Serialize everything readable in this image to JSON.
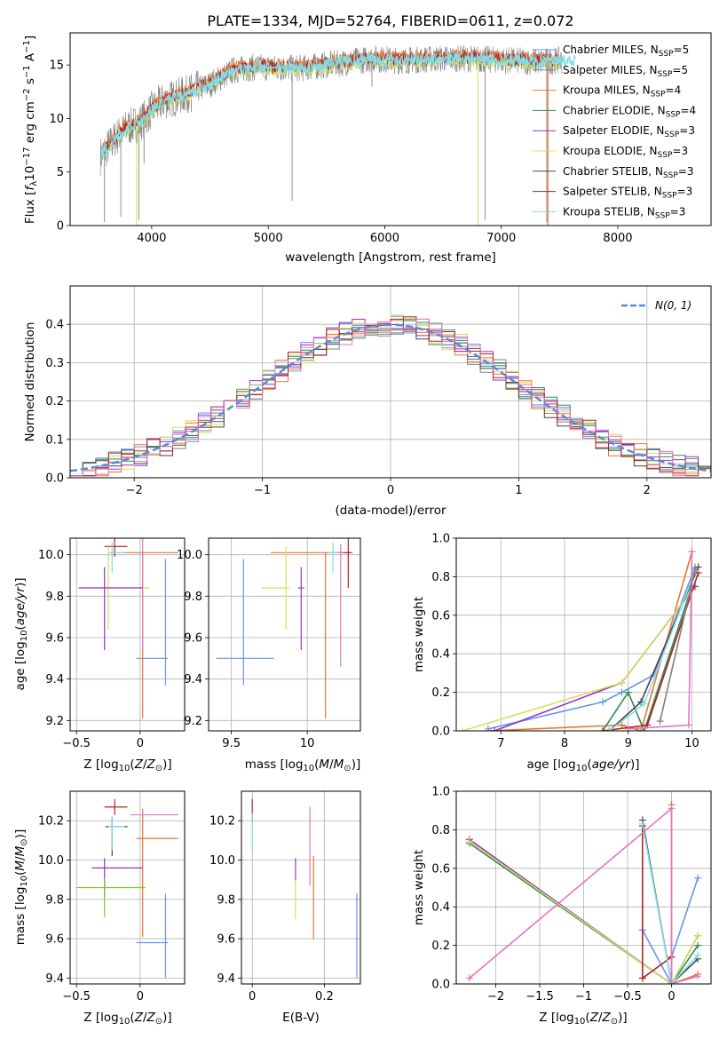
{
  "figure": {
    "title": "PLATE=1334, MJD=52764, FIBERID=0611, z=0.072",
    "colors": {
      "Chabrier MILES": "#6495ed",
      "Salpeter MILES": "#808080",
      "Kroupa MILES": "#e8772e",
      "Chabrier ELODIE": "#2e8b57",
      "Salpeter ELODIE": "#9932cc",
      "Kroupa ELODIE": "#d4e157",
      "Chabrier STELIB": "#444444",
      "Salpeter STELIB": "#b22222",
      "Kroupa STELIB": "#80deea",
      "pink": "#e377c2",
      "lime": "#7cc628",
      "normal": "#5b8bd6"
    }
  },
  "chart_data": [
    {
      "id": "spectrum",
      "type": "line",
      "title": "PLATE=1334, MJD=52764, FIBERID=0611, z=0.072",
      "xlabel": "wavelength [Angstrom, rest frame]",
      "ylabel": "Flux [fλ10⁻¹⁷ erg cm⁻² s⁻¹ A⁻¹]",
      "xlim": [
        3300,
        8800
      ],
      "ylim": [
        0,
        18
      ],
      "xticks": [
        4000,
        5000,
        6000,
        7000,
        8000
      ],
      "yticks": [
        0,
        5,
        10,
        15
      ],
      "continuum": [
        [
          3560,
          6.5
        ],
        [
          3700,
          8.3
        ],
        [
          3800,
          9.2
        ],
        [
          3900,
          9.6
        ],
        [
          4000,
          10.8
        ],
        [
          4100,
          11.6
        ],
        [
          4300,
          12.3
        ],
        [
          4500,
          13.2
        ],
        [
          4700,
          14.5
        ],
        [
          4900,
          14.8
        ],
        [
          5100,
          14.7
        ],
        [
          5300,
          14.7
        ],
        [
          5500,
          15.0
        ],
        [
          5700,
          15.3
        ],
        [
          5900,
          15.6
        ],
        [
          6100,
          15.4
        ],
        [
          6300,
          15.5
        ],
        [
          6500,
          15.6
        ],
        [
          6700,
          15.6
        ],
        [
          6900,
          15.5
        ],
        [
          7100,
          15.4
        ],
        [
          7300,
          15.3
        ],
        [
          7500,
          15.4
        ]
      ],
      "absorption_lines": [
        [
          3595,
          0.3
        ],
        [
          3735,
          0.8
        ],
        [
          3890,
          0.5
        ],
        [
          3934,
          5.8
        ],
        [
          4340,
          10.6
        ],
        [
          5205,
          2.3
        ],
        [
          5890,
          13.0
        ],
        [
          6800,
          0.3
        ],
        [
          6860,
          0.5
        ],
        [
          7390,
          0.3
        ]
      ],
      "legend": [
        {
          "label": "Chabrier MILES, N",
          "sub": "SSP",
          "suffix": "=5"
        },
        {
          "label": "Salpeter MILES, N",
          "sub": "SSP",
          "suffix": "=5"
        },
        {
          "label": "Kroupa MILES, N",
          "sub": "SSP",
          "suffix": "=4"
        },
        {
          "label": "Chabrier ELODIE, N",
          "sub": "SSP",
          "suffix": "=4"
        },
        {
          "label": "Salpeter ELODIE, N",
          "sub": "SSP",
          "suffix": "=3"
        },
        {
          "label": "Kroupa ELODIE, N",
          "sub": "SSP",
          "suffix": "=3"
        },
        {
          "label": "Chabrier STELIB, N",
          "sub": "SSP",
          "suffix": "=3"
        },
        {
          "label": "Salpeter STELIB, N",
          "sub": "SSP",
          "suffix": "=3"
        },
        {
          "label": "Kroupa STELIB, N",
          "sub": "SSP",
          "suffix": "=3"
        }
      ],
      "grid": false,
      "legend_position": "right"
    },
    {
      "id": "residuals",
      "type": "histogram",
      "xlabel": "(data-model)/error",
      "ylabel": "Normed distribution",
      "xlim": [
        -2.5,
        2.5
      ],
      "ylim": [
        0,
        0.5
      ],
      "xticks": [
        -2,
        -1,
        0,
        1,
        2
      ],
      "yticks": [
        0,
        0.1,
        0.2,
        0.3,
        0.4
      ],
      "bin_width": 0.1,
      "normal_label": "N(0, 1)",
      "grid": true,
      "legend_position": "top-right"
    },
    {
      "id": "age-vs-Z",
      "type": "errorbar",
      "xlabel": "Z [log10(Z/Z⊙)]",
      "ylabel": "age [log10(age/yr)]",
      "xlim": [
        -0.55,
        0.35
      ],
      "ylim": [
        9.15,
        10.08
      ],
      "xticks": [
        -0.5,
        0.0
      ],
      "yticks": [
        9.2,
        9.4,
        9.6,
        9.8,
        10.0
      ],
      "points": [
        {
          "c": "Chabrier MILES",
          "x": 0.2,
          "y": 9.5,
          "xerr": [
            0.23,
            0.02
          ],
          "yerr": [
            0.13,
            0.48
          ]
        },
        {
          "c": "Kroupa MILES",
          "x": 0.02,
          "y": 10.01,
          "xerr": [
            0.25,
            0.28
          ],
          "yerr": [
            0.8,
            0.0
          ]
        },
        {
          "c": "Salpeter STELIB",
          "x": -0.2,
          "y": 10.04,
          "xerr": [
            0.08,
            0.1
          ],
          "yerr": [
            0.05,
            0.05
          ]
        },
        {
          "c": "pink",
          "x": 0.02,
          "y": 9.84,
          "xerr": [
            0.02,
            0.05
          ],
          "yerr": [
            0.3,
            0.3
          ]
        },
        {
          "c": "Kroupa ELODIE",
          "x": -0.25,
          "y": 9.84,
          "xerr": [
            0.24,
            0.32
          ],
          "yerr": [
            0.2,
            0.2
          ]
        },
        {
          "c": "Salpeter ELODIE",
          "x": -0.28,
          "y": 9.84,
          "xerr": [
            0.2,
            0.3
          ],
          "yerr": [
            0.3,
            0.1
          ]
        },
        {
          "c": "Kroupa STELIB",
          "x": -0.22,
          "y": 10.01,
          "xerr": [
            0.03,
            0.1
          ],
          "yerr": [
            0.1,
            0.05
          ]
        }
      ],
      "grid": true
    },
    {
      "id": "age-vs-mass",
      "type": "errorbar",
      "xlabel": "mass [log10(M/M⊙)]",
      "ylabel": "",
      "xlim": [
        9.35,
        10.35
      ],
      "ylim": [
        9.15,
        10.08
      ],
      "xticks": [
        9.5,
        10.0
      ],
      "yticks": [
        9.2,
        9.4,
        9.6,
        9.8,
        10.0
      ],
      "points": [
        {
          "c": "Chabrier MILES",
          "x": 9.58,
          "y": 9.5,
          "xerr": [
            0.18,
            0.2
          ],
          "yerr": [
            0.13,
            0.48
          ]
        },
        {
          "c": "Kroupa MILES",
          "x": 10.12,
          "y": 10.01,
          "xerr": [
            0.36,
            0.18
          ],
          "yerr": [
            0.8,
            0.0
          ]
        },
        {
          "c": "Salpeter STELIB",
          "x": 10.27,
          "y": 10.01,
          "xerr": [
            0.05,
            0.02
          ],
          "yerr": [
            0.17,
            0.07
          ]
        },
        {
          "c": "pink",
          "x": 10.22,
          "y": 10.01,
          "xerr": [
            0.05,
            0.02
          ],
          "yerr": [
            0.55,
            0.04
          ]
        },
        {
          "c": "Kroupa ELODIE",
          "x": 9.86,
          "y": 9.84,
          "xerr": [
            0.16,
            0.02
          ],
          "yerr": [
            0.2,
            0.2
          ]
        },
        {
          "c": "Salpeter ELODIE",
          "x": 9.96,
          "y": 9.84,
          "xerr": [
            0.02,
            0.02
          ],
          "yerr": [
            0.3,
            0.1
          ]
        },
        {
          "c": "Kroupa STELIB",
          "x": 10.17,
          "y": 10.01,
          "xerr": [
            0.03,
            0.03
          ],
          "yerr": [
            0.1,
            0.05
          ]
        }
      ],
      "grid": true
    },
    {
      "id": "massweight-vs-age",
      "type": "line",
      "xlabel": "age [log10(age/yr)]",
      "ylabel": "mass weight",
      "xlim": [
        6.3,
        10.3
      ],
      "ylim": [
        0,
        1.0
      ],
      "xticks": [
        7,
        8,
        9,
        10
      ],
      "yticks": [
        0.0,
        0.2,
        0.4,
        0.6,
        0.8,
        1.0
      ],
      "series": [
        {
          "c": "Chabrier MILES",
          "points": [
            [
              6.8,
              0.01
            ],
            [
              8.6,
              0.15
            ],
            [
              8.9,
              0.2
            ],
            [
              9.4,
              0.29
            ],
            [
              10.05,
              0.85
            ]
          ]
        },
        {
          "c": "Kroupa MILES",
          "points": [
            [
              6.8,
              0.0
            ],
            [
              8.9,
              0.03
            ],
            [
              9.2,
              0.0
            ],
            [
              10.0,
              0.93
            ]
          ]
        },
        {
          "c": "Chabrier ELODIE",
          "points": [
            [
              8.6,
              0.0
            ],
            [
              9.0,
              0.2
            ],
            [
              9.25,
              0.0
            ],
            [
              10.0,
              0.75
            ]
          ]
        },
        {
          "c": "Salpeter ELODIE",
          "points": [
            [
              6.9,
              0.0
            ],
            [
              8.9,
              0.25
            ],
            [
              10.05,
              0.75
            ]
          ]
        },
        {
          "c": "Kroupa ELODIE",
          "points": [
            [
              6.4,
              0.0
            ],
            [
              8.9,
              0.25
            ],
            [
              10.0,
              0.73
            ]
          ]
        },
        {
          "c": "Chabrier STELIB",
          "points": [
            [
              8.7,
              0.0
            ],
            [
              9.2,
              0.15
            ],
            [
              10.1,
              0.85
            ]
          ]
        },
        {
          "c": "Salpeter STELIB",
          "points": [
            [
              8.6,
              0.0
            ],
            [
              9.3,
              0.03
            ],
            [
              10.1,
              0.82
            ]
          ]
        },
        {
          "c": "Kroupa STELIB",
          "points": [
            [
              8.7,
              0.0
            ],
            [
              9.25,
              0.14
            ],
            [
              10.05,
              0.83
            ]
          ]
        },
        {
          "c": "pink",
          "points": [
            [
              9.0,
              0.01
            ],
            [
              9.95,
              0.03
            ],
            [
              10.0,
              0.93
            ]
          ]
        },
        {
          "c": "Salpeter MILES",
          "points": [
            [
              9.5,
              0.05
            ],
            [
              10.05,
              0.84
            ]
          ]
        }
      ],
      "grid": true
    },
    {
      "id": "mass-vs-Z",
      "type": "errorbar",
      "xlabel": "Z [log10(Z/Z⊙)]",
      "ylabel": "mass [log10(M/M⊙)]",
      "xlim": [
        -0.55,
        0.35
      ],
      "ylim": [
        9.37,
        10.35
      ],
      "xticks": [
        -0.5,
        0.0
      ],
      "yticks": [
        9.4,
        9.6,
        9.8,
        10.0,
        10.2
      ],
      "points": [
        {
          "c": "Chabrier MILES",
          "x": 0.2,
          "y": 9.58,
          "xerr": [
            0.23,
            0.02
          ],
          "yerr": [
            0.18,
            0.25
          ]
        },
        {
          "c": "Kroupa MILES",
          "x": 0.02,
          "y": 10.11,
          "xerr": [
            0.05,
            0.28
          ],
          "yerr": [
            0.5,
            0.15
          ]
        },
        {
          "c": "Salpeter STELIB",
          "x": -0.2,
          "y": 10.27,
          "xerr": [
            0.08,
            0.1
          ],
          "yerr": [
            0.04,
            0.04
          ]
        },
        {
          "c": "pink",
          "x": 0.02,
          "y": 10.23,
          "xerr": [
            0.1,
            0.28
          ],
          "yerr": [
            0.02,
            0.02
          ]
        },
        {
          "c": "Salpeter ELODIE",
          "x": -0.28,
          "y": 9.96,
          "xerr": [
            0.1,
            0.3
          ],
          "yerr": [
            0.15,
            0.05
          ]
        },
        {
          "c": "lime",
          "x": -0.28,
          "y": 9.86,
          "xerr": [
            0.22,
            0.32
          ],
          "yerr": [
            0.15,
            0.05
          ]
        },
        {
          "c": "Chabrier STELIB",
          "x": -0.22,
          "y": 10.17,
          "xerr": [
            0.05,
            0.12
          ],
          "yerr": [
            0.15,
            0.05
          ]
        },
        {
          "c": "Kroupa STELIB",
          "x": -0.22,
          "y": 10.17,
          "xerr": [
            0.03,
            0.1
          ],
          "yerr": [
            0.12,
            0.05
          ]
        }
      ],
      "grid": true
    },
    {
      "id": "mass-vs-ebv",
      "type": "errorbar",
      "xlabel": "E(B-V)",
      "ylabel": "",
      "xlim": [
        -0.03,
        0.3
      ],
      "ylim": [
        9.37,
        10.35
      ],
      "xticks": [
        0.0,
        0.2
      ],
      "yticks": [
        9.4,
        9.6,
        9.8,
        10.0,
        10.2
      ],
      "points": [
        {
          "c": "Chabrier MILES",
          "x": 0.29,
          "y": 9.62,
          "yerr": [
            0.22,
            0.21
          ]
        },
        {
          "c": "Kroupa MILES",
          "x": 0.17,
          "y": 9.82,
          "yerr": [
            0.22,
            0.2
          ]
        },
        {
          "c": "pink",
          "x": 0.16,
          "y": 10.07,
          "yerr": [
            0.2,
            0.2
          ]
        },
        {
          "c": "Salpeter ELODIE",
          "x": 0.12,
          "y": 9.95,
          "yerr": [
            0.07,
            0.06
          ]
        },
        {
          "c": "Kroupa ELODIE",
          "x": 0.12,
          "y": 9.85,
          "yerr": [
            0.15,
            0.05
          ]
        },
        {
          "c": "Salpeter STELIB",
          "x": 0.0,
          "y": 10.24,
          "yerr": [
            0.04,
            0.07
          ]
        },
        {
          "c": "Kroupa STELIB",
          "x": 0.0,
          "y": 10.14,
          "yerr": [
            0.1,
            0.1
          ]
        }
      ],
      "grid": true
    },
    {
      "id": "massweight-vs-Z",
      "type": "line",
      "xlabel": "Z [log10(Z/Z⊙)]",
      "ylabel": "mass weight",
      "xlim": [
        -2.45,
        0.45
      ],
      "ylim": [
        0,
        1.0
      ],
      "xticks": [
        -2.0,
        -1.5,
        -1.0,
        -0.5,
        0.0
      ],
      "yticks": [
        0.0,
        0.2,
        0.4,
        0.6,
        0.8,
        1.0
      ],
      "series": [
        {
          "c": "Chabrier MILES",
          "points": [
            [
              -0.33,
              0.28
            ],
            [
              0.0,
              0.0
            ],
            [
              0.0,
              0.14
            ],
            [
              0.3,
              0.55
            ]
          ]
        },
        {
          "c": "Kroupa MILES",
          "points": [
            [
              0.0,
              0.93
            ],
            [
              0.0,
              0.0
            ],
            [
              0.3,
              0.05
            ]
          ]
        },
        {
          "c": "Chabrier ELODIE",
          "points": [
            [
              -2.3,
              0.73
            ],
            [
              0.0,
              0.0
            ],
            [
              0.3,
              0.2
            ]
          ]
        },
        {
          "c": "Salpeter ELODIE",
          "points": [
            [
              -2.3,
              0.75
            ],
            [
              0.0,
              0.0
            ],
            [
              0.3,
              0.25
            ]
          ]
        },
        {
          "c": "Kroupa ELODIE",
          "points": [
            [
              -2.3,
              0.74
            ],
            [
              0.0,
              0.0
            ],
            [
              0.3,
              0.25
            ]
          ]
        },
        {
          "c": "Salpeter STELIB",
          "points": [
            [
              -0.33,
              0.82
            ],
            [
              -0.33,
              0.03
            ],
            [
              0.0,
              0.14
            ]
          ]
        },
        {
          "c": "Chabrier STELIB",
          "points": [
            [
              -0.33,
              0.85
            ],
            [
              0.0,
              0.0
            ],
            [
              0.3,
              0.13
            ]
          ]
        },
        {
          "c": "Kroupa STELIB",
          "points": [
            [
              -0.33,
              0.83
            ],
            [
              0.0,
              0.0
            ],
            [
              0.3,
              0.15
            ]
          ]
        },
        {
          "c": "pink",
          "points": [
            [
              -2.3,
              0.03
            ],
            [
              0.0,
              0.91
            ],
            [
              0.0,
              0.0
            ],
            [
              0.3,
              0.04
            ]
          ]
        }
      ],
      "grid": true
    }
  ]
}
